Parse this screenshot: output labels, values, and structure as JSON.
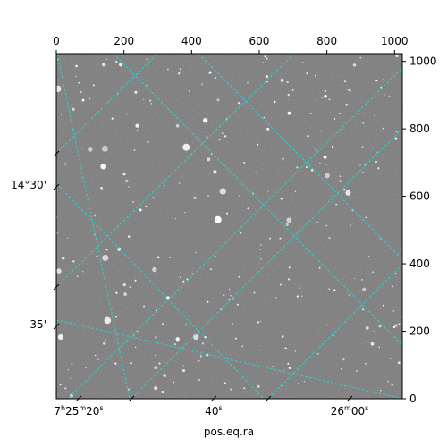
{
  "chart_data": {
    "type": "image",
    "xlabel": "pos.eq.ra",
    "top_axis": {
      "range": [
        0,
        1023
      ],
      "ticks": [
        0,
        200,
        400,
        600,
        800,
        1000
      ],
      "labels": [
        "0",
        "200",
        "400",
        "600",
        "800",
        "1000"
      ]
    },
    "right_axis": {
      "range": [
        0,
        1023
      ],
      "ticks": [
        0,
        200,
        400,
        600,
        800,
        1000
      ],
      "labels": [
        "0",
        "200",
        "400",
        "600",
        "800",
        "1000"
      ]
    },
    "ra_ticks": [
      {
        "main": "7",
        "main_sup": "h",
        "mid": "25",
        "mid_sup": "m",
        "sec": "20",
        "sec_sup": "s"
      },
      {
        "main": "",
        "main_sup": "",
        "mid": "",
        "mid_sup": "",
        "sec": "40",
        "sec_sup": "s"
      },
      {
        "main": "",
        "main_sup": "",
        "mid": "26",
        "mid_sup": "m",
        "sec": "00",
        "sec_sup": "s"
      }
    ],
    "dec_ticks": [
      "14°30'",
      "35'"
    ],
    "grid": true,
    "grid_color": "#2fd0d0",
    "background_color": "#7a7a7a"
  }
}
